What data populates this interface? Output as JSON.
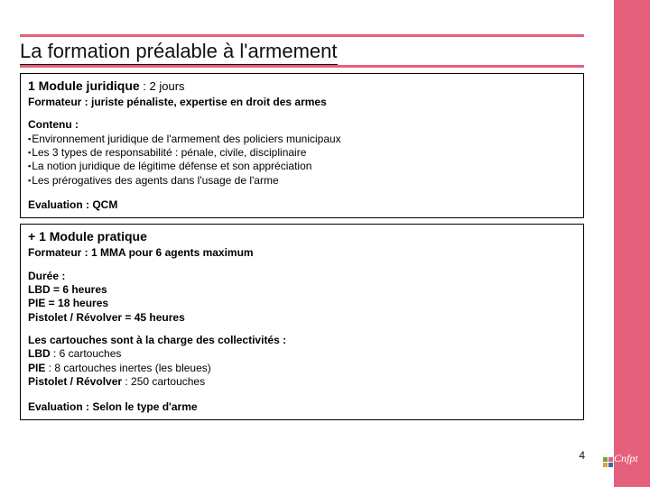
{
  "title": "La formation préalable à l'armement",
  "page_number": "4",
  "colors": {
    "accent": "#e5607c",
    "text": "#111111",
    "logo_green": "#7aa03c",
    "logo_pink": "#e5607c",
    "logo_yellow": "#d9a33e",
    "logo_blue": "#3a6aa0"
  },
  "logo_text": "Cnfpt",
  "module1": {
    "heading_bold": "1 Module juridique",
    "heading_rest": " : 2 jours",
    "trainer": "Formateur : juriste pénaliste, expertise en droit des armes",
    "content_label": "Contenu :",
    "bullets": [
      "Environnement juridique de l'armement des policiers municipaux",
      "Les 3 types de responsabilité : pénale, civile, disciplinaire",
      "La notion juridique de légitime défense et son appréciation",
      "Les prérogatives des agents dans l'usage de l'arme"
    ],
    "evaluation": "Evaluation : QCM"
  },
  "module2": {
    "heading": "+ 1 Module pratique",
    "trainer": "Formateur : 1 MMA pour 6 agents maximum",
    "duration_label": "Durée :",
    "durations": [
      "LBD = 6 heures",
      "PIE = 18 heures",
      "Pistolet / Révolver = 45 heures"
    ],
    "cartridges_label": "Les cartouches sont à la charge des collectivités :",
    "cartridges": [
      "LBD : 6 cartouches",
      "PIE : 8 cartouches inertes (les bleues)",
      "Pistolet / Révolver : 250 cartouches"
    ],
    "evaluation": "Evaluation : Selon le type d'arme"
  }
}
